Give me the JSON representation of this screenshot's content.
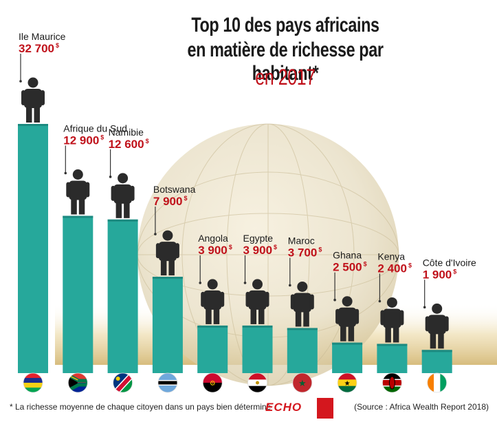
{
  "title": {
    "line1": "Top 10 des pays africains",
    "line2": "en matière de richesse par habitant*",
    "year": "en 2017"
  },
  "footnote": "* La richesse moyenne de chaque citoyen dans un pays bien déterminé",
  "source": "(Source : Africa Wealth Report 2018)",
  "logos": {
    "echo": "ECHO"
  },
  "colors": {
    "bar": "#26a89b",
    "bar_dark": "#1c8a80",
    "value": "#c0121b",
    "label": "#1b1b1b",
    "person": "#2b2b2b"
  },
  "chart_data": {
    "type": "bar",
    "title": "Top 10 des pays africains en matière de richesse par habitant* en 2017",
    "categories": [
      "Ile Maurice",
      "Afrique du Sud",
      "Namibie",
      "Botswana",
      "Angola",
      "Egypte",
      "Maroc",
      "Ghana",
      "Kenya",
      "Côte d'Ivoire"
    ],
    "values": [
      32700,
      12900,
      12600,
      7900,
      3900,
      3900,
      3700,
      2500,
      2400,
      1900
    ],
    "value_labels": [
      "32 700",
      "12 900",
      "12 600",
      "7 900",
      "3 900",
      "3 900",
      "3 700",
      "2 500",
      "2 400",
      "1 900"
    ],
    "unit": "$",
    "flags": [
      "mauritius-flag",
      "south-africa-flag",
      "namibia-flag",
      "botswana-flag",
      "angola-flag",
      "egypt-flag",
      "morocco-flag",
      "ghana-flag",
      "kenya-flag",
      "ivory-coast-flag"
    ]
  }
}
